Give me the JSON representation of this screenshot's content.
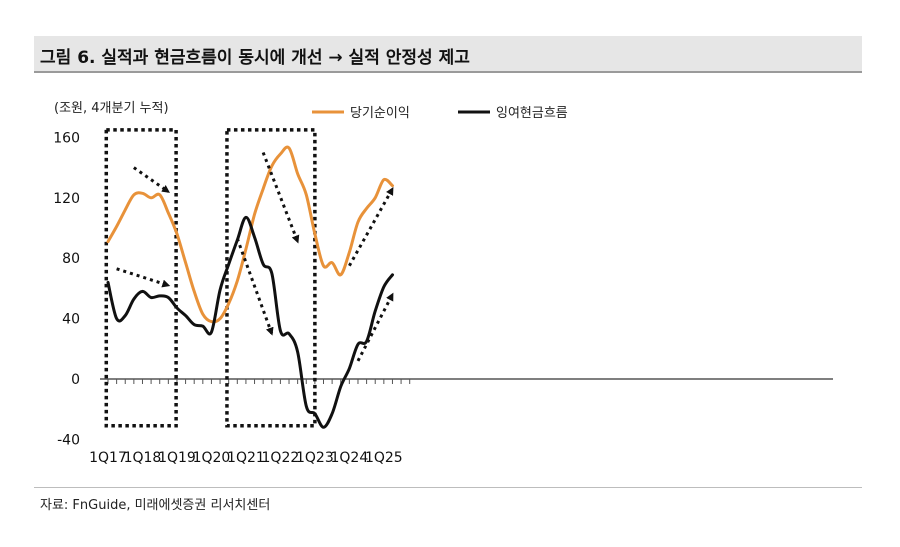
{
  "figure": {
    "title": "그림 6. 실적과 현금흐름이 동시에 개선 → 실적 안정성 제고",
    "source": "자료: FnGuide, 미래에셋증권 리서치센터"
  },
  "colors": {
    "net_income": "#E8923A",
    "cash_flow": "#111111",
    "axis": "#555555",
    "title_bg": "#E6E6E6"
  },
  "chart_data": {
    "type": "line",
    "unit_label": "(조원, 4개분기 누적)",
    "ylim": [
      -40,
      160
    ],
    "yticks": [
      -40,
      0,
      40,
      80,
      120,
      160
    ],
    "xlim": [
      0,
      35
    ],
    "xtick_labels": [
      {
        "x": 0,
        "label": "1Q17"
      },
      {
        "x": 4,
        "label": "1Q18"
      },
      {
        "x": 8,
        "label": "1Q19"
      },
      {
        "x": 12,
        "label": "1Q20"
      },
      {
        "x": 16,
        "label": "1Q21"
      },
      {
        "x": 20,
        "label": "1Q22"
      },
      {
        "x": 24,
        "label": "1Q23"
      },
      {
        "x": 28,
        "label": "1Q24"
      },
      {
        "x": 32,
        "label": "1Q25"
      }
    ],
    "series": [
      {
        "name": "당기순이익",
        "color_key": "net_income",
        "values": [
          [
            0,
            91
          ],
          [
            1,
            101
          ],
          [
            2,
            112
          ],
          [
            3,
            122
          ],
          [
            4,
            123
          ],
          [
            5,
            120
          ],
          [
            6,
            122
          ],
          [
            7,
            110
          ],
          [
            8,
            96
          ],
          [
            9,
            77
          ],
          [
            10,
            58
          ],
          [
            11,
            43
          ],
          [
            12,
            38
          ],
          [
            13,
            40
          ],
          [
            14,
            50
          ],
          [
            15,
            65
          ],
          [
            16,
            86
          ],
          [
            17,
            109
          ],
          [
            18,
            126
          ],
          [
            19,
            141
          ],
          [
            20,
            149
          ],
          [
            21,
            153
          ],
          [
            22,
            136
          ],
          [
            23,
            122
          ],
          [
            24,
            96
          ],
          [
            25,
            75
          ],
          [
            26,
            77
          ],
          [
            27,
            69
          ],
          [
            28,
            84
          ],
          [
            29,
            104
          ],
          [
            30,
            113
          ],
          [
            31,
            120
          ],
          [
            32,
            132
          ],
          [
            33,
            128
          ]
        ]
      },
      {
        "name": "잉여현금흐름",
        "color_key": "cash_flow",
        "values": [
          [
            0,
            64
          ],
          [
            1,
            40
          ],
          [
            2,
            42
          ],
          [
            3,
            53
          ],
          [
            4,
            58
          ],
          [
            5,
            54
          ],
          [
            6,
            55
          ],
          [
            7,
            54
          ],
          [
            8,
            47
          ],
          [
            9,
            42
          ],
          [
            10,
            36
          ],
          [
            11,
            35
          ],
          [
            12,
            31
          ],
          [
            13,
            59
          ],
          [
            14,
            76
          ],
          [
            15,
            92
          ],
          [
            16,
            107
          ],
          [
            17,
            94
          ],
          [
            18,
            76
          ],
          [
            19,
            70
          ],
          [
            20,
            32
          ],
          [
            21,
            30
          ],
          [
            22,
            18
          ],
          [
            23,
            -18
          ],
          [
            24,
            -23
          ],
          [
            25,
            -32
          ],
          [
            26,
            -23
          ],
          [
            27,
            -5
          ],
          [
            28,
            7
          ],
          [
            29,
            23
          ],
          [
            30,
            25
          ],
          [
            31,
            45
          ],
          [
            32,
            61
          ],
          [
            33,
            69
          ]
        ]
      }
    ],
    "highlight_boxes": [
      {
        "x_start": -0.2,
        "x_end": 7.9,
        "y_low": -31,
        "y_high": 165
      },
      {
        "x_start": 13.8,
        "x_end": 24.0,
        "y_low": -31,
        "y_high": 165
      }
    ],
    "trend_arrows": [
      {
        "from": [
          3,
          140
        ],
        "to": [
          7,
          124
        ]
      },
      {
        "from": [
          1,
          73
        ],
        "to": [
          7,
          62
        ]
      },
      {
        "from": [
          18,
          150
        ],
        "to": [
          22,
          91
        ]
      },
      {
        "from": [
          15,
          93
        ],
        "to": [
          19,
          30
        ]
      },
      {
        "from": [
          28,
          75
        ],
        "to": [
          33,
          126
        ]
      },
      {
        "from": [
          29,
          12
        ],
        "to": [
          33,
          56
        ]
      }
    ]
  }
}
